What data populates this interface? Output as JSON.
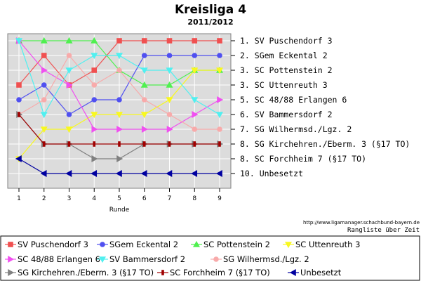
{
  "chart_data": {
    "type": "line",
    "title": "Kreisliga 4",
    "subtitle": "2011/2012",
    "xlabel": "Runde",
    "x": [
      1,
      2,
      3,
      4,
      5,
      6,
      7,
      8,
      9
    ],
    "ylim": [
      1,
      10
    ],
    "y_inverted": true,
    "grid": true,
    "grid_color": "#ffffff",
    "background_color": "#dcdcdc",
    "standings": [
      "1.  SV Puschendorf 3",
      "2.  SGem Eckental 2",
      "3.  SC Pottenstein 2",
      "3.  SC Uttenreuth 3",
      "5.  SC 48/88 Erlangen 6",
      "6.  SV Bammersdorf 2",
      "7.  SG Wilhermsd./Lgz. 2",
      "8.  SG Kirchehren./Eberm. 3 (§17 TO)",
      "8.  SC Forchheim 7 (§17 TO)",
      "10. Unbesetzt"
    ],
    "source_url": "http://www.ligamanager.schachbund-bayern.de",
    "caption": "Rangliste über Zeit",
    "series": [
      {
        "name": "SV Puschendorf 3",
        "color": "#f05050",
        "marker": "square",
        "values": [
          4,
          2,
          4,
          3,
          1,
          1,
          1,
          1,
          1
        ]
      },
      {
        "name": "SGem Eckental 2",
        "color": "#5050f0",
        "marker": "circle",
        "values": [
          5,
          4,
          6,
          5,
          5,
          2,
          2,
          2,
          2
        ]
      },
      {
        "name": "SC Pottenstein 2",
        "color": "#50f050",
        "marker": "triangle-up",
        "values": [
          1,
          1,
          1,
          1,
          3,
          4,
          4,
          3,
          3
        ]
      },
      {
        "name": "SC Uttenreuth 3",
        "color": "#f8f820",
        "marker": "triangle-down",
        "values": [
          9,
          7,
          7,
          6,
          6,
          6,
          5,
          3,
          3
        ]
      },
      {
        "name": "SC 48/88 Erlangen 6",
        "color": "#f050f0",
        "marker": "triangle-right",
        "values": [
          1,
          3,
          4,
          7,
          7,
          7,
          7,
          6,
          5
        ]
      },
      {
        "name": "SV Bammersdorf 2",
        "color": "#50f0f0",
        "marker": "triangle-down",
        "values": [
          1,
          6,
          3,
          2,
          2,
          3,
          3,
          5,
          6
        ]
      },
      {
        "name": "SG Wilhermsd./Lgz. 2",
        "color": "#f8aaaa",
        "marker": "circle",
        "values": [
          6,
          5,
          2,
          4,
          3,
          5,
          6,
          7,
          7
        ]
      },
      {
        "name": "SG Kirchehren./Eberm. 3 (§17 TO)",
        "color": "#808080",
        "marker": "triangle-right",
        "values": [
          6,
          8,
          8,
          9,
          9,
          8,
          8,
          8,
          8
        ]
      },
      {
        "name": "SC Forchheim 7 (§17 TO)",
        "color": "#a00000",
        "marker": "bar",
        "values": [
          6,
          8,
          8,
          8,
          8,
          8,
          8,
          8,
          8
        ]
      },
      {
        "name": "Unbesetzt",
        "color": "#0000a0",
        "marker": "triangle-left",
        "values": [
          9,
          10,
          10,
          10,
          10,
          10,
          10,
          10,
          10
        ]
      }
    ]
  }
}
